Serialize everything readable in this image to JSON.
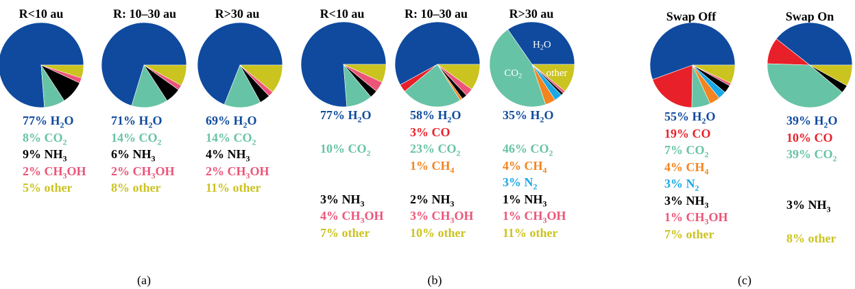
{
  "colors": {
    "H2O": "#0f4a9e",
    "CO2": "#67c3a5",
    "NH3": "#000000",
    "CH3OH": "#ec5578",
    "other": "#cbc31f",
    "CO": "#e8202a",
    "CH4": "#f3841f",
    "N2": "#1aa9e6"
  },
  "panel_labels": [
    "(a)",
    "(b)",
    "(c)"
  ],
  "chart_data": [
    {
      "type": "pie",
      "panel": "(a)",
      "title": "R<10 au",
      "slices": [
        {
          "name": "H2O",
          "value": 77,
          "label": "77% H₂O"
        },
        {
          "name": "CO2",
          "value": 8,
          "label": "8% CO₂"
        },
        {
          "name": "NH3",
          "value": 9,
          "label": "9% NH₃"
        },
        {
          "name": "CH3OH",
          "value": 2,
          "label": "2% CH₃OH"
        },
        {
          "name": "other",
          "value": 5,
          "label": "5% other"
        }
      ],
      "legend_rows": [
        0,
        1,
        2,
        3,
        4
      ]
    },
    {
      "type": "pie",
      "panel": "(a)",
      "title": "R: 10–30 au",
      "slices": [
        {
          "name": "H2O",
          "value": 71,
          "label": "71% H₂O"
        },
        {
          "name": "CO2",
          "value": 14,
          "label": "14% CO₂"
        },
        {
          "name": "NH3",
          "value": 6,
          "label": "6% NH₃"
        },
        {
          "name": "CH3OH",
          "value": 2,
          "label": "2% CH₃OH"
        },
        {
          "name": "other",
          "value": 8,
          "label": "8% other"
        }
      ],
      "legend_rows": [
        0,
        1,
        2,
        3,
        4
      ]
    },
    {
      "type": "pie",
      "panel": "(a)",
      "title": "R>30 au",
      "slices": [
        {
          "name": "H2O",
          "value": 69,
          "label": "69% H₂O"
        },
        {
          "name": "CO2",
          "value": 14,
          "label": "14% CO₂"
        },
        {
          "name": "NH3",
          "value": 4,
          "label": "4% NH₃"
        },
        {
          "name": "CH3OH",
          "value": 2,
          "label": "2% CH₃OH"
        },
        {
          "name": "other",
          "value": 11,
          "label": "11% other"
        }
      ],
      "legend_rows": [
        0,
        1,
        2,
        3,
        4
      ]
    },
    {
      "type": "pie",
      "panel": "(b)",
      "title": "R<10 au",
      "slices": [
        {
          "name": "H2O",
          "value": 77,
          "label": "77% H₂O"
        },
        {
          "name": "CO2",
          "value": 10,
          "label": "10% CO₂"
        },
        {
          "name": "NH3",
          "value": 3,
          "label": "3% NH₃"
        },
        {
          "name": "CH3OH",
          "value": 4,
          "label": "4% CH₃OH"
        },
        {
          "name": "other",
          "value": 7,
          "label": "7% other"
        }
      ],
      "legend_rows": [
        0,
        null,
        1,
        null,
        null,
        2,
        3,
        4
      ]
    },
    {
      "type": "pie",
      "panel": "(b)",
      "title": "R: 10–30 au",
      "slices": [
        {
          "name": "H2O",
          "value": 58,
          "label": "58% H₂O"
        },
        {
          "name": "CO",
          "value": 3,
          "label": "3% CO"
        },
        {
          "name": "CO2",
          "value": 23,
          "label": "23% CO₂"
        },
        {
          "name": "CH4",
          "value": 1,
          "label": "1% CH₄"
        },
        {
          "name": "NH3",
          "value": 2,
          "label": "2% NH₃"
        },
        {
          "name": "CH3OH",
          "value": 3,
          "label": "3% CH₃OH"
        },
        {
          "name": "other",
          "value": 10,
          "label": "10% other"
        }
      ],
      "legend_rows": [
        0,
        1,
        2,
        3,
        null,
        4,
        5,
        6
      ]
    },
    {
      "type": "pie",
      "panel": "(b)",
      "title": "R>30 au",
      "slices": [
        {
          "name": "H2O",
          "value": 35,
          "label": "35% H₂O"
        },
        {
          "name": "CO2",
          "value": 46,
          "label": "46% CO₂"
        },
        {
          "name": "CH4",
          "value": 4,
          "label": "4% CH₄"
        },
        {
          "name": "N2",
          "value": 3,
          "label": "3% N₂"
        },
        {
          "name": "NH3",
          "value": 1,
          "label": "1% NH₃"
        },
        {
          "name": "CH3OH",
          "value": 1,
          "label": "1% CH₃OH"
        },
        {
          "name": "other",
          "value": 11,
          "label": "11% other"
        }
      ],
      "legend_rows": [
        0,
        null,
        1,
        2,
        3,
        4,
        5,
        6
      ],
      "in_pie_labels": [
        {
          "slice": 0,
          "text": "H2O"
        },
        {
          "slice": 1,
          "text": "CO2"
        },
        {
          "slice": 6,
          "text": "other"
        }
      ]
    },
    {
      "type": "pie",
      "panel": "(c)",
      "title": "Swap Off",
      "slices": [
        {
          "name": "H2O",
          "value": 55,
          "label": "55% H₂O"
        },
        {
          "name": "CO",
          "value": 19,
          "label": "19% CO"
        },
        {
          "name": "CO2",
          "value": 7,
          "label": "7% CO₂"
        },
        {
          "name": "CH4",
          "value": 4,
          "label": "4% CH₄"
        },
        {
          "name": "N2",
          "value": 3,
          "label": "3% N₂"
        },
        {
          "name": "NH3",
          "value": 3,
          "label": "3% NH₃"
        },
        {
          "name": "CH3OH",
          "value": 1,
          "label": "1% CH₃OH"
        },
        {
          "name": "other",
          "value": 7,
          "label": "7% other"
        }
      ],
      "legend_rows": [
        0,
        1,
        2,
        3,
        4,
        5,
        6,
        7
      ]
    },
    {
      "type": "pie",
      "panel": "(c)",
      "title": "Swap On",
      "slices": [
        {
          "name": "H2O",
          "value": 39,
          "label": "39% H₂O"
        },
        {
          "name": "CO",
          "value": 10,
          "label": "10% CO"
        },
        {
          "name": "CO2",
          "value": 39,
          "label": "39% CO₂"
        },
        {
          "name": "NH3",
          "value": 3,
          "label": "3% NH₃"
        },
        {
          "name": "other",
          "value": 8,
          "label": "8% other"
        }
      ],
      "legend_rows": [
        0,
        1,
        2,
        null,
        null,
        3,
        null,
        4
      ]
    }
  ]
}
